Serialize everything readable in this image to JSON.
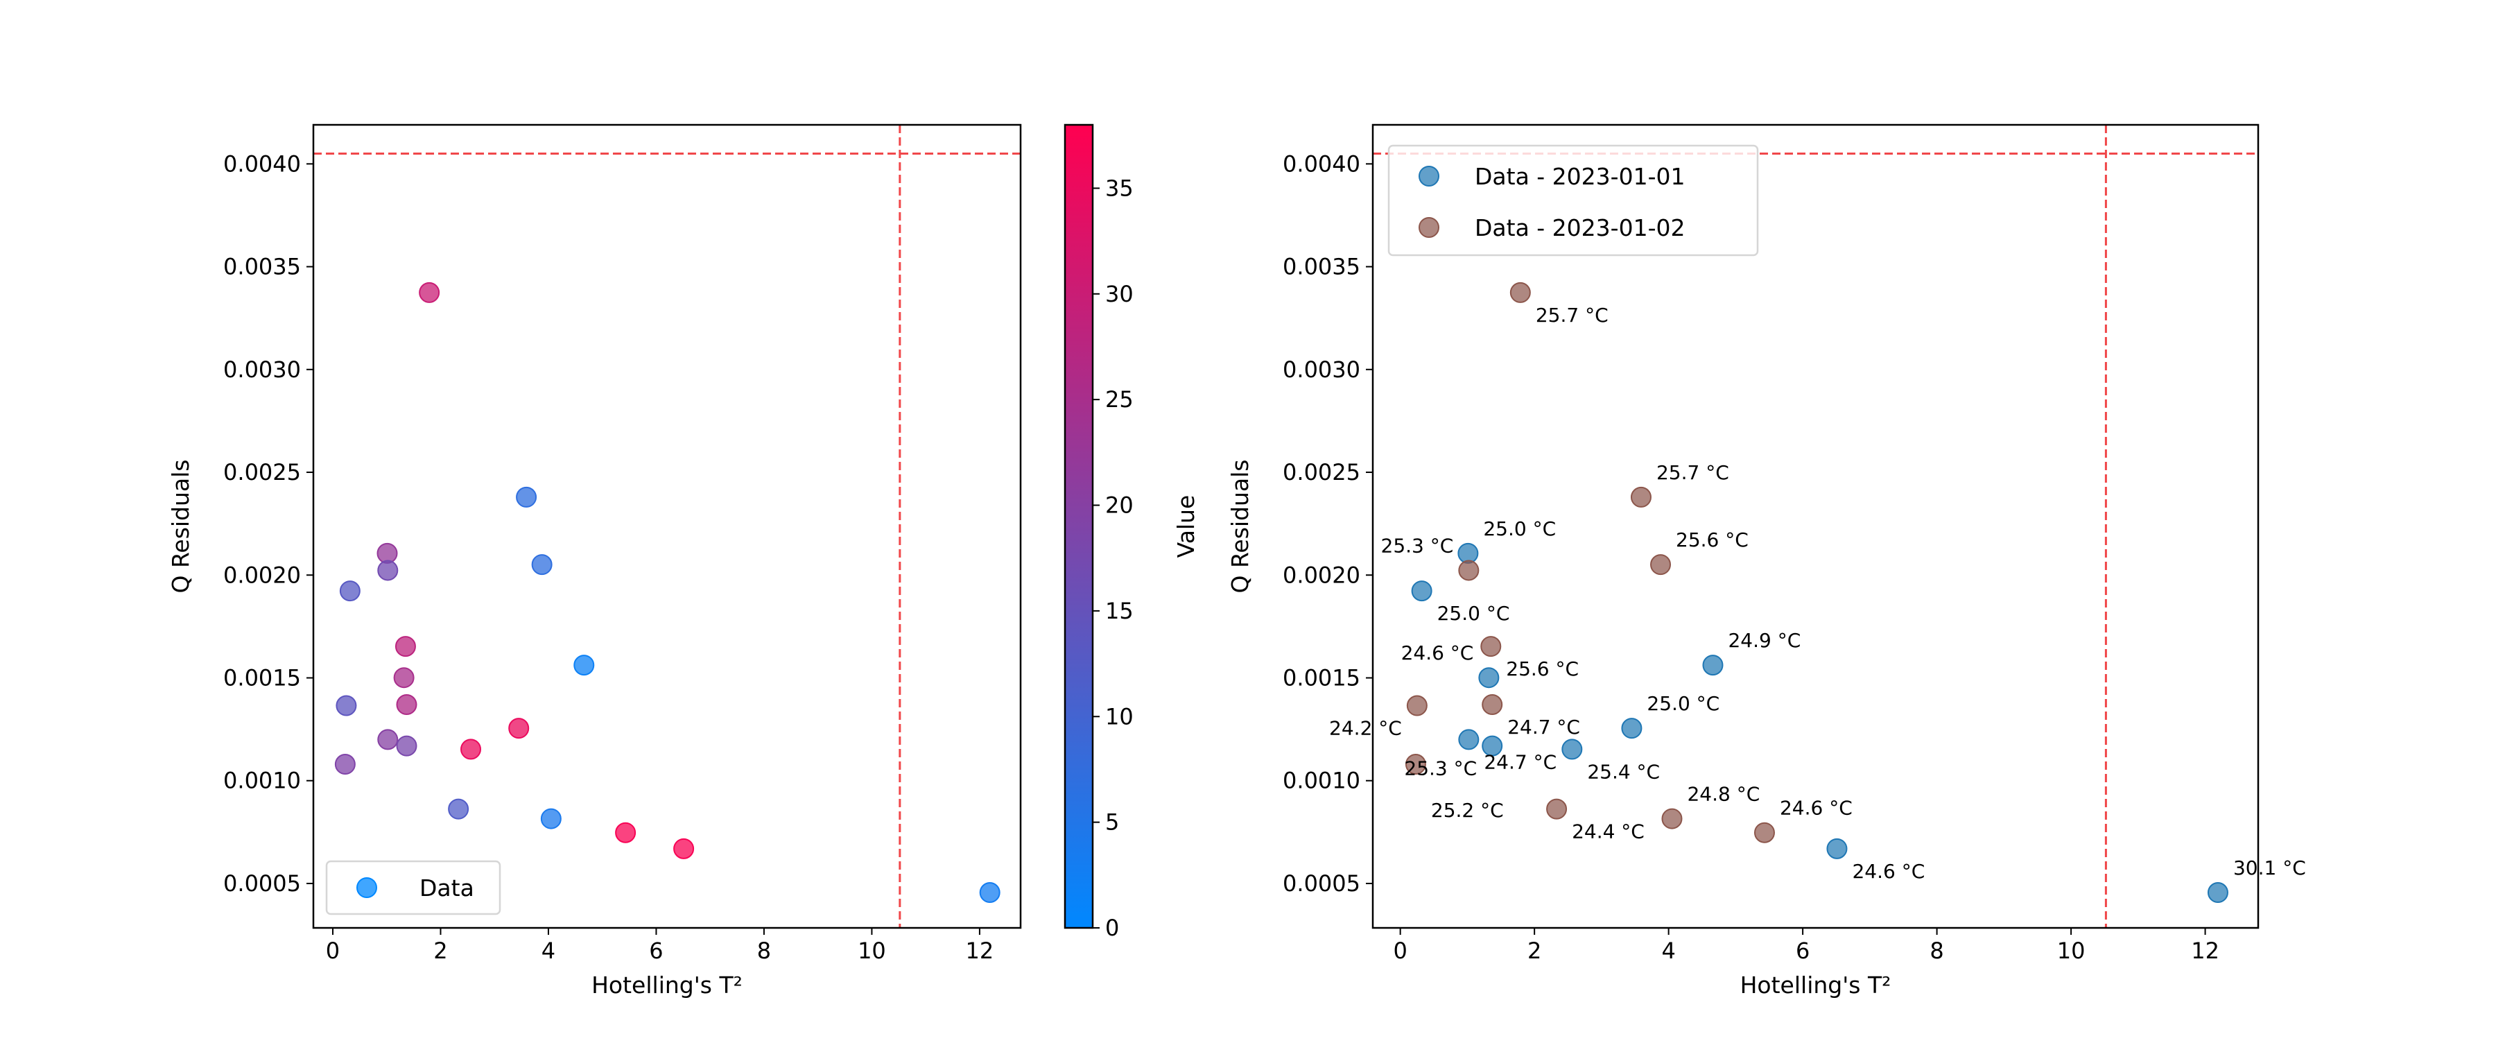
{
  "chart_data": [
    {
      "type": "scatter",
      "xlabel": "Hotelling's T²",
      "ylabel": "Q Residuals",
      "xlim": [
        -0.36,
        12.76
      ],
      "ylim": [
        0.000284,
        0.00419
      ],
      "xticks": [
        0,
        2,
        4,
        6,
        8,
        10,
        12
      ],
      "yticks": [
        0.0005,
        0.001,
        0.0015,
        0.002,
        0.0025,
        0.003,
        0.0035,
        0.004
      ],
      "ytick_labels": [
        "0.0005",
        "0.0010",
        "0.0015",
        "0.0020",
        "0.0025",
        "0.0030",
        "0.0035",
        "0.0040"
      ],
      "grid": false,
      "legend": {
        "placement": "lower-left",
        "entries": [
          "Data"
        ]
      },
      "thresholds": {
        "t2_limit": 10.52,
        "q_limit": 0.00405,
        "color": "#f0474a"
      },
      "colorbar": {
        "label": "Value",
        "range": [
          0,
          38
        ],
        "ticks": [
          0,
          5,
          10,
          15,
          20,
          25,
          30,
          35
        ],
        "color_low": "#0088ff",
        "color_high": "#ff0050"
      },
      "points": [
        {
          "x": 1.79,
          "y": 0.003374,
          "value": 30
        },
        {
          "x": 3.59,
          "y": 0.002379,
          "value": 7
        },
        {
          "x": 3.88,
          "y": 0.002051,
          "value": 7
        },
        {
          "x": 1.01,
          "y": 0.002106,
          "value": 22
        },
        {
          "x": 1.02,
          "y": 0.002023,
          "value": 17
        },
        {
          "x": 0.32,
          "y": 0.001923,
          "value": 13
        },
        {
          "x": 1.35,
          "y": 0.001653,
          "value": 28
        },
        {
          "x": 1.32,
          "y": 0.001501,
          "value": 25
        },
        {
          "x": 0.25,
          "y": 0.001365,
          "value": 14
        },
        {
          "x": 1.37,
          "y": 0.00137,
          "value": 26
        },
        {
          "x": 1.02,
          "y": 0.0012,
          "value": 20
        },
        {
          "x": 1.37,
          "y": 0.001169,
          "value": 18
        },
        {
          "x": 2.56,
          "y": 0.001153,
          "value": 35
        },
        {
          "x": 3.45,
          "y": 0.001255,
          "value": 35
        },
        {
          "x": 0.23,
          "y": 0.00108,
          "value": 19
        },
        {
          "x": 2.33,
          "y": 0.000862,
          "value": 12
        },
        {
          "x": 4.05,
          "y": 0.000815,
          "value": 4
        },
        {
          "x": 5.43,
          "y": 0.000747,
          "value": 37
        },
        {
          "x": 6.51,
          "y": 0.000669,
          "value": 37
        },
        {
          "x": 4.66,
          "y": 0.001562,
          "value": 2
        },
        {
          "x": 12.19,
          "y": 0.000456,
          "value": 3
        }
      ]
    },
    {
      "type": "scatter",
      "xlabel": "Hotelling's T²",
      "ylabel": "Q Residuals",
      "xlim": [
        -0.41,
        12.79
      ],
      "ylim": [
        0.000284,
        0.00419
      ],
      "xticks": [
        0,
        2,
        4,
        6,
        8,
        10,
        12
      ],
      "yticks": [
        0.0005,
        0.001,
        0.0015,
        0.002,
        0.0025,
        0.003,
        0.0035,
        0.004
      ],
      "ytick_labels": [
        "0.0005",
        "0.0010",
        "0.0015",
        "0.0020",
        "0.0025",
        "0.0030",
        "0.0035",
        "0.0040"
      ],
      "grid": false,
      "legend": {
        "placement": "upper-left"
      },
      "thresholds": {
        "t2_limit": 10.52,
        "q_limit": 0.00405,
        "color": "#f0474a"
      },
      "series": [
        {
          "name": "Data - 2023-01-01",
          "color": "#1f77b4",
          "points": [
            {
              "x": 1.01,
              "y": 0.002106,
              "label": "25.0 °C"
            },
            {
              "x": 0.32,
              "y": 0.001923,
              "label": "25.0 °C"
            },
            {
              "x": 1.32,
              "y": 0.001501,
              "label": "24.6 °C"
            },
            {
              "x": 1.02,
              "y": 0.0012,
              "label": "24.7 °C"
            },
            {
              "x": 1.37,
              "y": 0.001169,
              "label": "25.3 °C"
            },
            {
              "x": 2.56,
              "y": 0.001153,
              "label": "25.4 °C"
            },
            {
              "x": 3.45,
              "y": 0.001255,
              "label": "25.0 °C"
            },
            {
              "x": 4.66,
              "y": 0.001562,
              "label": "24.9 °C"
            },
            {
              "x": 6.51,
              "y": 0.000669,
              "label": "24.6 °C"
            },
            {
              "x": 12.19,
              "y": 0.000456,
              "label": "30.1 °C"
            }
          ]
        },
        {
          "name": "Data - 2023-01-02",
          "color": "#8c564b",
          "points": [
            {
              "x": 1.79,
              "y": 0.003374,
              "label": "25.7 °C"
            },
            {
              "x": 3.59,
              "y": 0.002379,
              "label": "25.7 °C"
            },
            {
              "x": 3.88,
              "y": 0.002051,
              "label": "25.6 °C"
            },
            {
              "x": 1.02,
              "y": 0.002023,
              "label": "25.3 °C"
            },
            {
              "x": 1.35,
              "y": 0.001653,
              "label": "25.6 °C"
            },
            {
              "x": 0.25,
              "y": 0.001365,
              "label": "24.2 °C"
            },
            {
              "x": 1.37,
              "y": 0.00137,
              "label": "24.7 °C"
            },
            {
              "x": 0.23,
              "y": 0.00108,
              "label": "25.2 °C"
            },
            {
              "x": 2.33,
              "y": 0.000862,
              "label": "24.4 °C"
            },
            {
              "x": 4.05,
              "y": 0.000815,
              "label": "24.8 °C"
            },
            {
              "x": 5.43,
              "y": 0.000747,
              "label": "24.6 °C"
            }
          ]
        }
      ]
    }
  ]
}
